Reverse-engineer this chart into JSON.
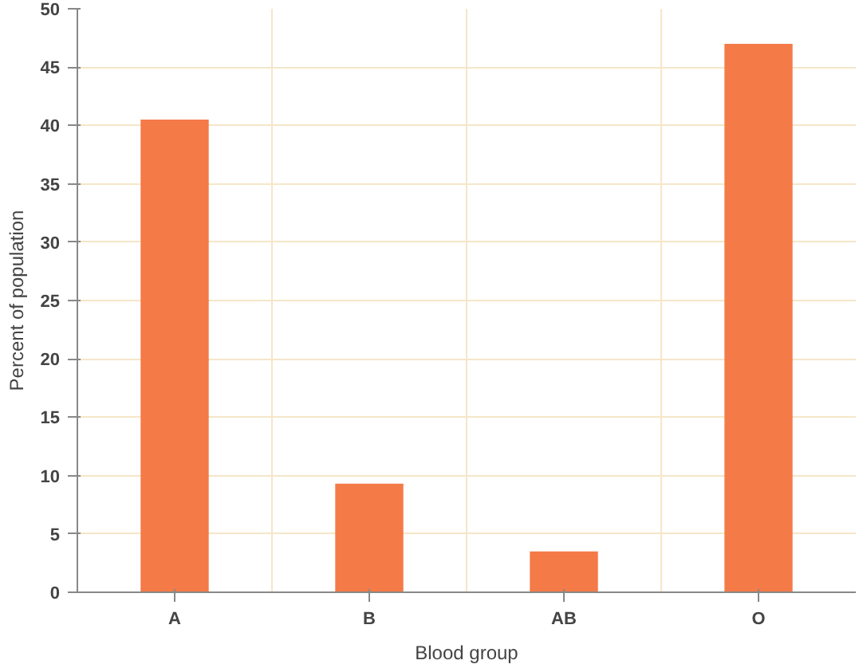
{
  "chart_data": {
    "type": "bar",
    "xlabel": "Blood group",
    "ylabel": "Percent of population",
    "categories": [
      "A",
      "B",
      "AB",
      "O"
    ],
    "values": [
      40.5,
      9.3,
      3.5,
      47
    ],
    "color": "#f47a48",
    "ylim": [
      0,
      50
    ],
    "yticks": [
      0,
      5,
      10,
      15,
      20,
      25,
      30,
      35,
      40,
      45,
      50
    ],
    "grid": true
  }
}
